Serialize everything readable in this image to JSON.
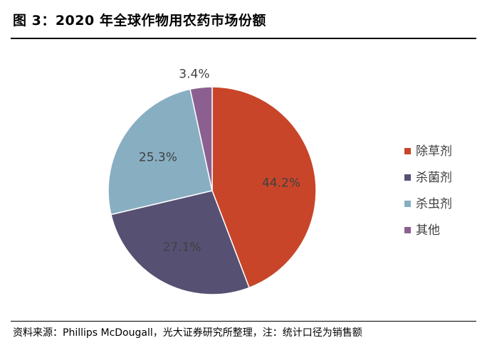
{
  "figure": {
    "title": "图 3：2020 年全球作物用农药市场份额",
    "source": "资料来源：Phillips McDougall，光大证券研究所整理，注：统计口径为销售额"
  },
  "chart_data": {
    "type": "pie",
    "title": "",
    "legend_position": "right",
    "start": "12 o'clock, clockwise",
    "slices": [
      {
        "name": "除草剂",
        "value": 44.2,
        "label": "44.2%",
        "color": "#C8452A"
      },
      {
        "name": "杀菌剂",
        "value": 27.1,
        "label": "27.1%",
        "color": "#565173"
      },
      {
        "name": "杀虫剂",
        "value": 25.3,
        "label": "25.3%",
        "color": "#88AEC2"
      },
      {
        "name": "其他",
        "value": 3.4,
        "label": "3.4%",
        "color": "#8B6090"
      }
    ]
  }
}
